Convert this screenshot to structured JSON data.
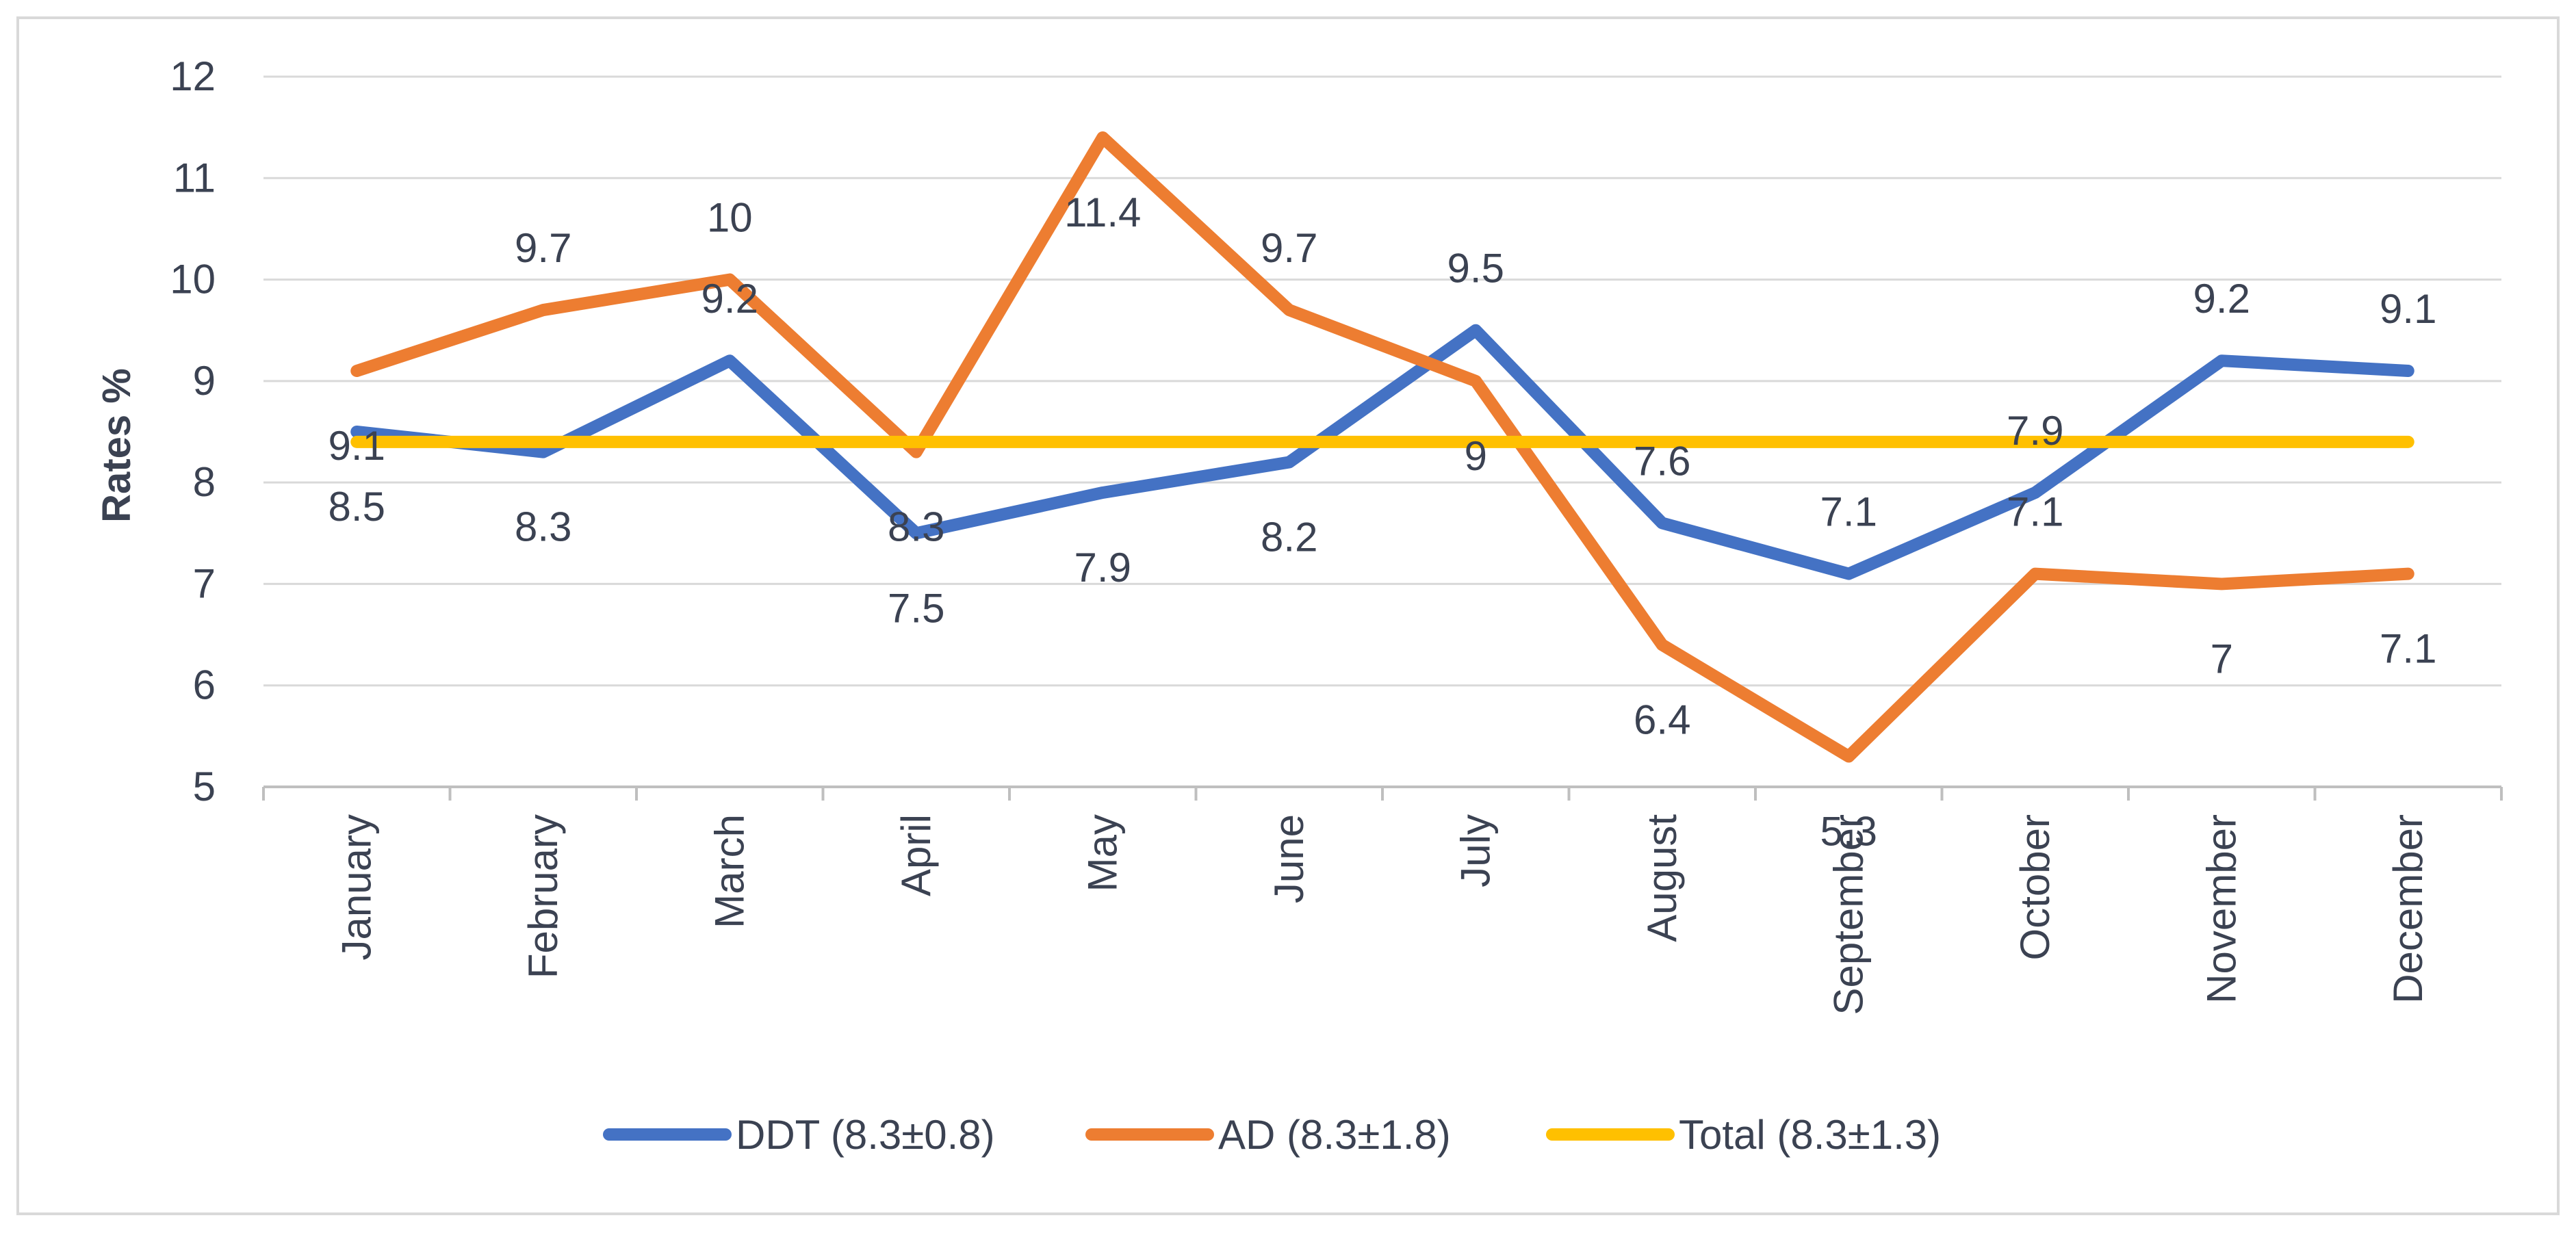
{
  "chart_data": {
    "type": "line",
    "title": "",
    "xlabel": "",
    "ylabel": "Rates %",
    "ylim": [
      5,
      12
    ],
    "yticks": [
      5,
      6,
      7,
      8,
      9,
      10,
      11,
      12
    ],
    "grid": true,
    "legend_position": "bottom",
    "categories": [
      "January",
      "February",
      "March",
      "April",
      "May",
      "June",
      "July",
      "August",
      "September",
      "October",
      "November",
      "December"
    ],
    "series": [
      {
        "name": "DDT (8.3±0.8)",
        "color": "#4472c4",
        "values": [
          8.5,
          8.3,
          9.2,
          7.5,
          7.9,
          8.2,
          9.5,
          7.6,
          7.1,
          7.9,
          9.2,
          9.1
        ],
        "labels": [
          "8.5",
          "8.3",
          "9.2",
          "7.5",
          "7.9",
          "8.2",
          "9.5",
          "7.6",
          "7.1",
          "7.9",
          "9.2",
          "9.1"
        ]
      },
      {
        "name": "AD (8.3±1.8)",
        "color": "#ed7d31",
        "values": [
          9.1,
          9.7,
          10,
          8.3,
          11.4,
          9.7,
          9,
          6.4,
          5.3,
          7.1,
          7,
          7.1
        ],
        "labels": [
          "9.1",
          "9.7",
          "10",
          "8.3",
          "11.4",
          "9.7",
          "9",
          "6.4",
          "5.3",
          "7.1",
          "7",
          "7.1"
        ]
      },
      {
        "name": "Total (8.3±1.3)",
        "color": "#ffc000",
        "values": [
          8.4,
          8.4,
          8.4,
          8.4,
          8.4,
          8.4,
          8.4,
          8.4,
          8.4,
          8.4,
          8.4,
          8.4
        ],
        "labels": []
      }
    ]
  }
}
